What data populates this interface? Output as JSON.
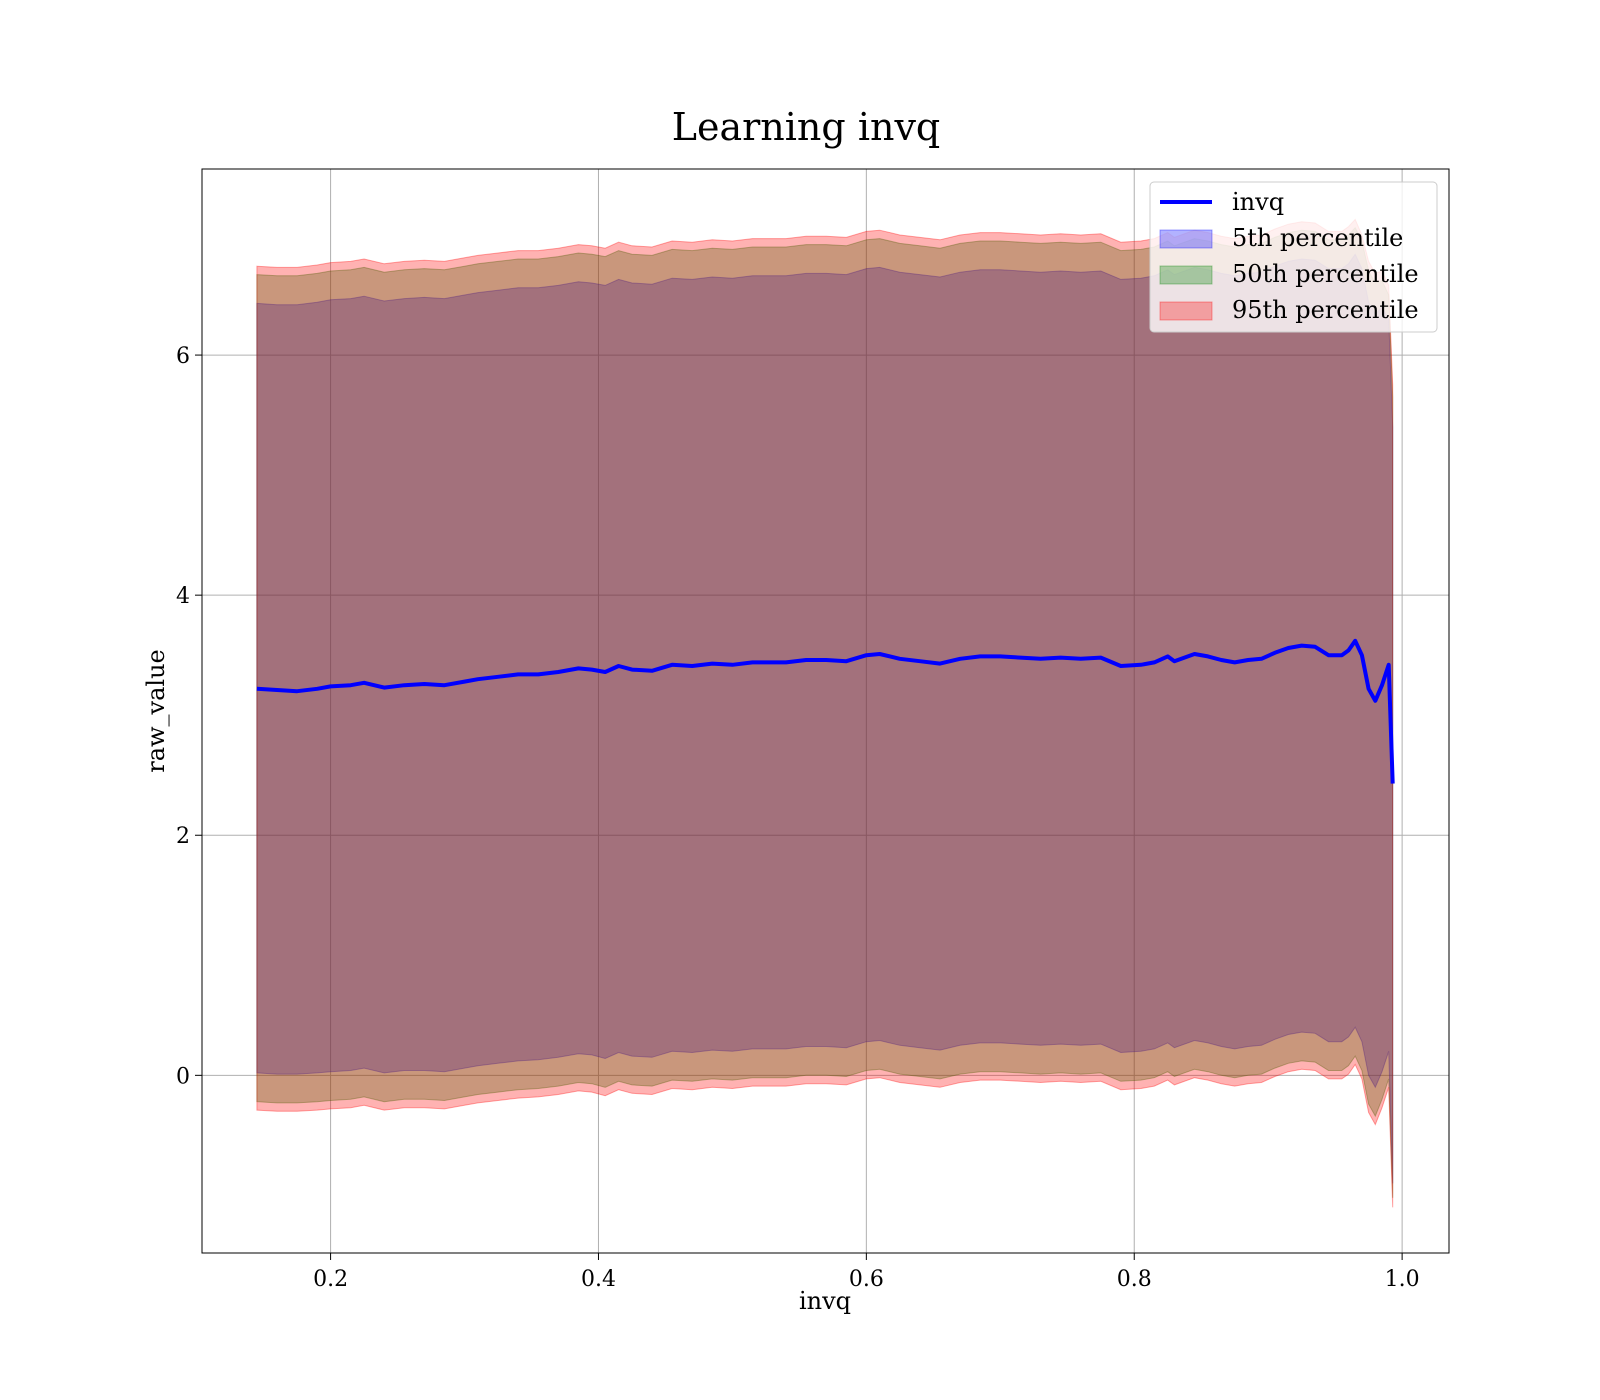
{
  "chart_data": {
    "type": "area",
    "title": "Learning invq",
    "xlabel": "invq",
    "ylabel": "raw_value",
    "xlim": [
      0.104,
      1.035
    ],
    "ylim": [
      -1.48,
      7.55
    ],
    "xticks": [
      0.2,
      0.4,
      0.6,
      0.8,
      1.0
    ],
    "xtick_labels": [
      "0.2",
      "0.4",
      "0.6",
      "0.8",
      "1.0"
    ],
    "yticks": [
      0,
      2,
      4,
      6
    ],
    "ytick_labels": [
      "0",
      "2",
      "4",
      "6"
    ],
    "grid": true,
    "legend_position": "top-right",
    "x": [
      0.145,
      0.16,
      0.175,
      0.19,
      0.2,
      0.215,
      0.225,
      0.24,
      0.255,
      0.27,
      0.285,
      0.3,
      0.31,
      0.325,
      0.34,
      0.355,
      0.37,
      0.385,
      0.395,
      0.405,
      0.415,
      0.425,
      0.44,
      0.455,
      0.47,
      0.485,
      0.5,
      0.515,
      0.525,
      0.54,
      0.555,
      0.57,
      0.585,
      0.6,
      0.61,
      0.625,
      0.64,
      0.655,
      0.67,
      0.685,
      0.7,
      0.715,
      0.73,
      0.745,
      0.76,
      0.775,
      0.79,
      0.805,
      0.815,
      0.825,
      0.83,
      0.845,
      0.855,
      0.865,
      0.875,
      0.885,
      0.895,
      0.905,
      0.915,
      0.925,
      0.935,
      0.945,
      0.955,
      0.96,
      0.965,
      0.97,
      0.975,
      0.98,
      0.985,
      0.99,
      0.993
    ],
    "series": [
      {
        "name": "invq",
        "color": "#0000ff",
        "values": [
          3.22,
          3.21,
          3.2,
          3.22,
          3.24,
          3.25,
          3.27,
          3.23,
          3.25,
          3.26,
          3.25,
          3.28,
          3.3,
          3.32,
          3.34,
          3.34,
          3.36,
          3.39,
          3.38,
          3.36,
          3.41,
          3.38,
          3.37,
          3.42,
          3.41,
          3.43,
          3.42,
          3.44,
          3.44,
          3.44,
          3.46,
          3.46,
          3.45,
          3.5,
          3.51,
          3.47,
          3.45,
          3.43,
          3.47,
          3.49,
          3.49,
          3.48,
          3.47,
          3.48,
          3.47,
          3.48,
          3.41,
          3.42,
          3.44,
          3.49,
          3.45,
          3.51,
          3.49,
          3.46,
          3.44,
          3.46,
          3.47,
          3.52,
          3.56,
          3.58,
          3.57,
          3.5,
          3.5,
          3.54,
          3.62,
          3.5,
          3.22,
          3.12,
          3.25,
          3.42,
          2.43
        ]
      },
      {
        "name": "5th percentile",
        "color": "#0000ff",
        "lower": [
          0.02,
          0.01,
          0.01,
          0.02,
          0.03,
          0.04,
          0.06,
          0.02,
          0.04,
          0.04,
          0.03,
          0.06,
          0.08,
          0.1,
          0.12,
          0.13,
          0.15,
          0.18,
          0.17,
          0.14,
          0.19,
          0.16,
          0.15,
          0.2,
          0.19,
          0.21,
          0.2,
          0.22,
          0.22,
          0.22,
          0.24,
          0.24,
          0.23,
          0.28,
          0.29,
          0.25,
          0.23,
          0.21,
          0.25,
          0.27,
          0.27,
          0.26,
          0.25,
          0.26,
          0.25,
          0.26,
          0.19,
          0.2,
          0.22,
          0.27,
          0.23,
          0.29,
          0.27,
          0.24,
          0.22,
          0.24,
          0.25,
          0.3,
          0.34,
          0.36,
          0.35,
          0.28,
          0.28,
          0.32,
          0.4,
          0.28,
          0.0,
          -0.1,
          0.03,
          0.2,
          -0.9
        ],
        "upper": [
          6.43,
          6.42,
          6.42,
          6.44,
          6.46,
          6.47,
          6.49,
          6.45,
          6.47,
          6.48,
          6.47,
          6.5,
          6.52,
          6.54,
          6.56,
          6.56,
          6.58,
          6.61,
          6.6,
          6.58,
          6.63,
          6.6,
          6.59,
          6.64,
          6.63,
          6.65,
          6.64,
          6.66,
          6.66,
          6.66,
          6.68,
          6.68,
          6.67,
          6.72,
          6.73,
          6.69,
          6.67,
          6.65,
          6.69,
          6.71,
          6.71,
          6.7,
          6.69,
          6.7,
          6.69,
          6.7,
          6.63,
          6.64,
          6.66,
          6.71,
          6.67,
          6.73,
          6.71,
          6.68,
          6.66,
          6.68,
          6.69,
          6.74,
          6.78,
          6.8,
          6.79,
          6.72,
          6.72,
          6.76,
          6.84,
          6.72,
          6.44,
          6.34,
          6.4,
          6.3,
          5.4
        ]
      },
      {
        "name": "50th percentile",
        "color": "#008000",
        "lower": [
          -0.22,
          -0.23,
          -0.23,
          -0.22,
          -0.21,
          -0.2,
          -0.18,
          -0.22,
          -0.2,
          -0.2,
          -0.21,
          -0.18,
          -0.16,
          -0.14,
          -0.12,
          -0.11,
          -0.09,
          -0.06,
          -0.07,
          -0.1,
          -0.05,
          -0.08,
          -0.09,
          -0.04,
          -0.05,
          -0.03,
          -0.04,
          -0.02,
          -0.02,
          -0.02,
          0.0,
          0.0,
          -0.01,
          0.04,
          0.05,
          0.01,
          -0.01,
          -0.03,
          0.01,
          0.03,
          0.03,
          0.02,
          0.01,
          0.02,
          0.01,
          0.02,
          -0.05,
          -0.04,
          -0.02,
          0.03,
          -0.01,
          0.05,
          0.03,
          0.0,
          -0.02,
          0.0,
          0.01,
          0.06,
          0.1,
          0.12,
          0.11,
          0.04,
          0.04,
          0.08,
          0.16,
          0.04,
          -0.24,
          -0.34,
          -0.2,
          -0.03,
          -1.02
        ],
        "upper": [
          6.67,
          6.66,
          6.66,
          6.68,
          6.7,
          6.71,
          6.73,
          6.69,
          6.71,
          6.72,
          6.71,
          6.74,
          6.76,
          6.78,
          6.8,
          6.8,
          6.82,
          6.85,
          6.84,
          6.82,
          6.87,
          6.84,
          6.83,
          6.88,
          6.87,
          6.89,
          6.88,
          6.9,
          6.9,
          6.9,
          6.92,
          6.92,
          6.91,
          6.96,
          6.97,
          6.93,
          6.91,
          6.89,
          6.93,
          6.95,
          6.95,
          6.94,
          6.93,
          6.94,
          6.93,
          6.94,
          6.87,
          6.88,
          6.9,
          6.95,
          6.91,
          6.97,
          6.95,
          6.92,
          6.9,
          6.92,
          6.93,
          6.98,
          7.02,
          7.04,
          7.03,
          6.96,
          6.96,
          7.0,
          7.06,
          6.95,
          6.7,
          6.6,
          6.62,
          6.5,
          5.65
        ]
      },
      {
        "name": "95th percentile",
        "color": "#ff0000",
        "lower": [
          -0.29,
          -0.3,
          -0.3,
          -0.29,
          -0.28,
          -0.27,
          -0.25,
          -0.29,
          -0.27,
          -0.27,
          -0.28,
          -0.25,
          -0.23,
          -0.21,
          -0.19,
          -0.18,
          -0.16,
          -0.13,
          -0.14,
          -0.17,
          -0.12,
          -0.15,
          -0.16,
          -0.11,
          -0.12,
          -0.1,
          -0.11,
          -0.09,
          -0.09,
          -0.09,
          -0.07,
          -0.07,
          -0.08,
          -0.03,
          -0.02,
          -0.06,
          -0.08,
          -0.1,
          -0.06,
          -0.04,
          -0.04,
          -0.05,
          -0.06,
          -0.05,
          -0.06,
          -0.05,
          -0.12,
          -0.11,
          -0.09,
          -0.04,
          -0.08,
          -0.02,
          -0.04,
          -0.07,
          -0.09,
          -0.07,
          -0.06,
          -0.01,
          0.03,
          0.05,
          0.04,
          -0.03,
          -0.03,
          0.01,
          0.09,
          -0.03,
          -0.31,
          -0.41,
          -0.27,
          -0.1,
          -1.1
        ],
        "upper": [
          6.74,
          6.73,
          6.73,
          6.75,
          6.77,
          6.78,
          6.8,
          6.76,
          6.78,
          6.79,
          6.78,
          6.81,
          6.83,
          6.85,
          6.87,
          6.87,
          6.89,
          6.92,
          6.91,
          6.89,
          6.94,
          6.91,
          6.9,
          6.95,
          6.94,
          6.96,
          6.95,
          6.97,
          6.97,
          6.97,
          6.99,
          6.99,
          6.98,
          7.03,
          7.04,
          7.0,
          6.98,
          6.96,
          7.0,
          7.02,
          7.02,
          7.01,
          7.0,
          7.01,
          7.0,
          7.01,
          6.94,
          6.95,
          6.97,
          7.02,
          6.98,
          7.04,
          7.02,
          6.99,
          6.97,
          6.99,
          7.0,
          7.05,
          7.09,
          7.11,
          7.1,
          7.03,
          7.03,
          7.07,
          7.13,
          7.0,
          6.78,
          6.68,
          6.7,
          6.58,
          5.75
        ]
      }
    ]
  }
}
